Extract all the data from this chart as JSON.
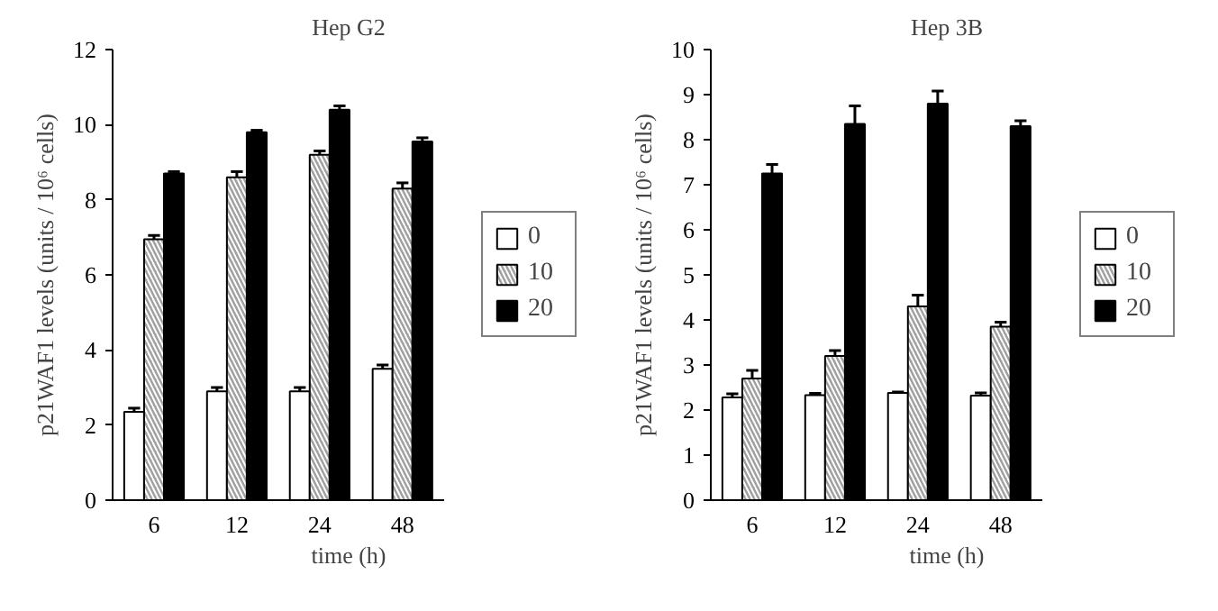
{
  "chart_data": [
    {
      "type": "bar",
      "title": "Hep G2",
      "xlabel": "time (h)",
      "ylabel": "p21WAF1 levels (units / 10⁶ cells)",
      "categories": [
        "6",
        "12",
        "24",
        "48"
      ],
      "ylim": [
        0,
        12
      ],
      "yticks": [
        0,
        2,
        4,
        6,
        8,
        10,
        12
      ],
      "grid": false,
      "legend": "right",
      "series": [
        {
          "name": "0",
          "color": "#ffffff",
          "values": [
            2.35,
            2.9,
            2.9,
            3.5
          ],
          "errors": [
            [
              2.35,
              2.45
            ],
            [
              2.9,
              3.0
            ],
            [
              2.9,
              3.0
            ],
            [
              3.5,
              3.6
            ]
          ]
        },
        {
          "name": "10",
          "color": "#a0a0a0",
          "values": [
            6.95,
            8.6,
            9.2,
            8.3
          ],
          "errors": [
            [
              6.95,
              7.05
            ],
            [
              8.6,
              8.75
            ],
            [
              9.2,
              9.3
            ],
            [
              8.3,
              8.45
            ]
          ]
        },
        {
          "name": "20",
          "color": "#000000",
          "values": [
            8.7,
            9.8,
            10.4,
            9.55
          ],
          "errors": [
            [
              8.7,
              8.75
            ],
            [
              9.8,
              9.85
            ],
            [
              10.4,
              10.5
            ],
            [
              9.55,
              9.65
            ]
          ]
        }
      ]
    },
    {
      "type": "bar",
      "title": "Hep 3B",
      "xlabel": "time (h)",
      "ylabel": "p21WAF1 levels (units / 10⁶ cells)",
      "categories": [
        "6",
        "12",
        "24",
        "48"
      ],
      "ylim": [
        0,
        10
      ],
      "yticks": [
        0,
        1,
        2,
        3,
        4,
        5,
        6,
        7,
        8,
        9,
        10
      ],
      "grid": false,
      "legend": "right",
      "series": [
        {
          "name": "0",
          "color": "#ffffff",
          "values": [
            2.28,
            2.33,
            2.38,
            2.32
          ],
          "errors": [
            [
              2.28,
              2.36
            ],
            [
              2.33,
              2.37
            ],
            [
              2.38,
              2.4
            ],
            [
              2.32,
              2.38
            ]
          ]
        },
        {
          "name": "10",
          "color": "#a0a0a0",
          "values": [
            2.7,
            3.2,
            4.3,
            3.85
          ],
          "errors": [
            [
              2.7,
              2.88
            ],
            [
              3.2,
              3.32
            ],
            [
              4.3,
              4.55
            ],
            [
              3.85,
              3.95
            ]
          ]
        },
        {
          "name": "20",
          "color": "#000000",
          "values": [
            7.25,
            8.35,
            8.8,
            8.3
          ],
          "errors": [
            [
              7.25,
              7.45
            ],
            [
              8.35,
              8.75
            ],
            [
              8.8,
              9.08
            ],
            [
              8.3,
              8.42
            ]
          ]
        }
      ]
    }
  ]
}
